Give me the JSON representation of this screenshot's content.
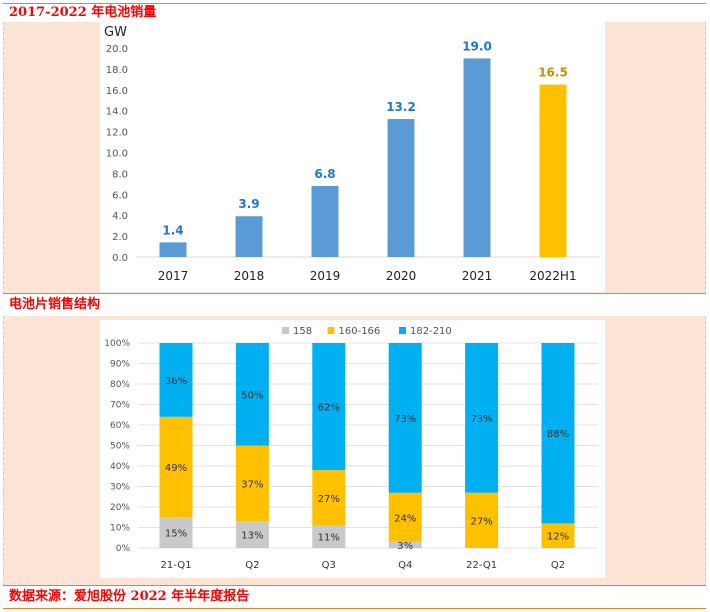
{
  "sections": {
    "top_title": "2017-2022 年电池销量",
    "mid_title": "电池片销售结构",
    "footer": "数据来源：爱旭股份 2022 年半年度报告"
  },
  "colors": {
    "blue": "#5b9bd5",
    "orange": "#ffc000",
    "cyan": "#00b0f0",
    "gray": "#c9c9c9",
    "label_blue": "#1f77d0",
    "label_orange": "#c58f00",
    "title_red": "#ff0000",
    "border": "#ed7d31",
    "bg": "#fce4d6"
  },
  "chart_data": [
    {
      "type": "bar",
      "unit_label": "GW",
      "categories": [
        "2017",
        "2018",
        "2019",
        "2020",
        "2021",
        "2022H1"
      ],
      "values": [
        1.4,
        3.9,
        6.8,
        13.2,
        19.0,
        16.5
      ],
      "value_labels": [
        "1.4",
        "3.9",
        "6.8",
        "13.2",
        "19.0",
        "16.5"
      ],
      "highlight": "2022H1",
      "ylim": [
        0,
        20
      ],
      "yticks": [
        "0.0",
        "2.0",
        "4.0",
        "6.0",
        "8.0",
        "10.0",
        "12.0",
        "14.0",
        "16.0",
        "18.0",
        "20.0"
      ],
      "grid": false
    },
    {
      "type": "bar",
      "stacked": true,
      "categories": [
        "21-Q1",
        "Q2",
        "Q3",
        "Q4",
        "22-Q1",
        "Q2"
      ],
      "series": [
        {
          "name": "158",
          "values": [
            15,
            13,
            11,
            3,
            0,
            0
          ]
        },
        {
          "name": "160-166",
          "values": [
            49,
            37,
            27,
            24,
            27,
            12
          ]
        },
        {
          "name": "182-210",
          "values": [
            36,
            50,
            62,
            73,
            73,
            88
          ]
        }
      ],
      "ylim": [
        0,
        100
      ],
      "yticks": [
        "0%",
        "10%",
        "20%",
        "30%",
        "40%",
        "50%",
        "60%",
        "70%",
        "80%",
        "90%",
        "100%"
      ],
      "legend": "top",
      "grid": true
    }
  ]
}
